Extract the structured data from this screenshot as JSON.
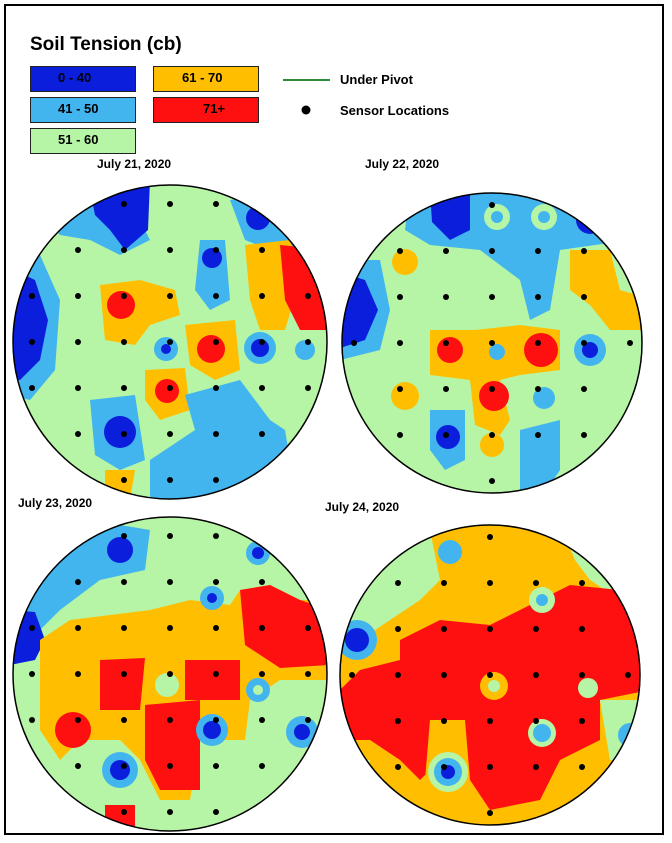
{
  "legend": {
    "title": "Soil Tension (cb)",
    "classes": [
      {
        "label": "0 - 40",
        "color": "#0a1edb"
      },
      {
        "label": "41 - 50",
        "color": "#43b5ee"
      },
      {
        "label": "51 - 60",
        "color": "#b7f5a6"
      },
      {
        "label": "61 - 70",
        "color": "#ffbf00"
      },
      {
        "label": "71+",
        "color": "#ff1010"
      }
    ],
    "pivot_label": "Under Pivot",
    "pivot_color": "#2e8b3a",
    "sensor_label": "Sensor Locations"
  },
  "maps": [
    {
      "date": "July 21, 2020"
    },
    {
      "date": "July 22, 2020"
    },
    {
      "date": "July 23, 2020"
    },
    {
      "date": "July 24, 2020"
    }
  ]
}
